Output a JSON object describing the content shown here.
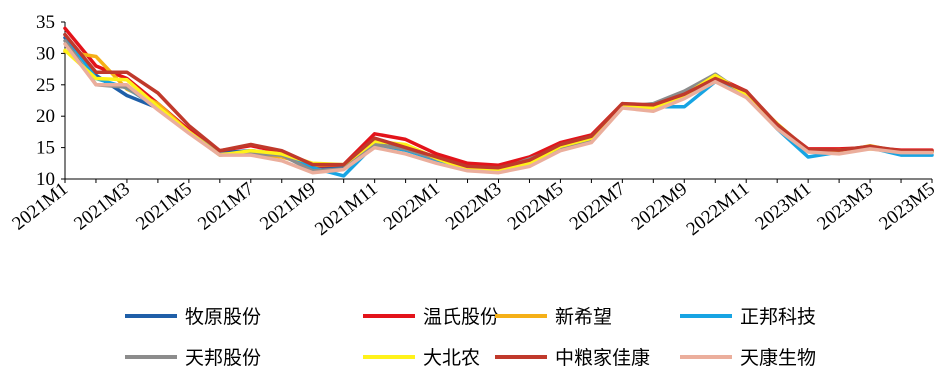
{
  "chart_data": {
    "type": "line",
    "title": "",
    "xlabel": "",
    "ylabel": "",
    "ylim": [
      10,
      35
    ],
    "yticks": [
      10,
      15,
      20,
      25,
      30,
      35
    ],
    "xtick_labels": [
      "2021M1",
      "2021M3",
      "2021M5",
      "2021M7",
      "2021M9",
      "2021M11",
      "2022M1",
      "2022M3",
      "2022M5",
      "2022M7",
      "2022M9",
      "2022M11",
      "2023M1",
      "2023M3",
      "2023M5"
    ],
    "categories": [
      "2021M1",
      "2021M2",
      "2021M3",
      "2021M4",
      "2021M5",
      "2021M6",
      "2021M7",
      "2021M8",
      "2021M9",
      "2021M10",
      "2021M11",
      "2021M12",
      "2022M1",
      "2022M2",
      "2022M3",
      "2022M4",
      "2022M5",
      "2022M6",
      "2022M7",
      "2022M8",
      "2022M9",
      "2022M10",
      "2022M11",
      "2022M12",
      "2023M1",
      "2023M2",
      "2023M3",
      "2023M4",
      "2023M5"
    ],
    "grid": false,
    "legend_position": "bottom",
    "series": [
      {
        "name": "牧原股份",
        "color": "#1F5FA8",
        "values": [
          32.5,
          26.5,
          23.3,
          21.3,
          17.5,
          14.2,
          14.5,
          14.0,
          12.0,
          11.8,
          15.7,
          14.7,
          13.4,
          11.8,
          11.3,
          12.6,
          15.0,
          16.5,
          21.8,
          21.5,
          23.2,
          26.0,
          23.5,
          18.3,
          14.5,
          14.5,
          15.2,
          14.4,
          14.4
        ]
      },
      {
        "name": "温氏股份",
        "color": "#E3131A",
        "values": [
          34.0,
          28.0,
          26.0,
          22.0,
          17.8,
          14.5,
          15.3,
          14.3,
          12.0,
          12.3,
          17.2,
          16.3,
          14.0,
          12.5,
          12.2,
          13.5,
          15.8,
          17.0,
          22.0,
          21.5,
          23.8,
          26.3,
          24.0,
          18.5,
          14.8,
          14.8,
          15.0,
          14.6,
          14.6
        ]
      },
      {
        "name": "新希望",
        "color": "#F5B017",
        "values": [
          30.3,
          29.5,
          24.3,
          22.0,
          17.5,
          14.0,
          14.0,
          13.5,
          12.2,
          12.3,
          15.5,
          14.6,
          13.2,
          11.5,
          11.3,
          12.3,
          15.0,
          16.3,
          21.5,
          21.0,
          23.5,
          26.0,
          23.5,
          18.3,
          14.5,
          14.3,
          15.3,
          14.3,
          14.3
        ]
      },
      {
        "name": "正邦科技",
        "color": "#17A4E3",
        "values": [
          33.0,
          26.0,
          24.5,
          21.3,
          17.5,
          13.8,
          14.3,
          13.8,
          11.8,
          10.5,
          15.5,
          14.6,
          13.0,
          11.5,
          11.5,
          12.5,
          14.8,
          16.0,
          21.8,
          21.5,
          21.5,
          25.5,
          23.3,
          18.0,
          13.5,
          14.3,
          15.0,
          13.8,
          13.8
        ]
      },
      {
        "name": "天邦股份",
        "color": "#8C8C8C",
        "values": [
          32.0,
          25.0,
          24.6,
          21.3,
          17.5,
          14.0,
          14.0,
          13.8,
          11.3,
          11.6,
          15.5,
          14.8,
          13.2,
          11.8,
          11.5,
          13.2,
          15.0,
          16.2,
          21.5,
          22.0,
          24.0,
          26.7,
          23.3,
          18.3,
          14.5,
          14.5,
          15.2,
          14.3,
          14.3
        ]
      },
      {
        "name": "大北农",
        "color": "#FFF21A",
        "values": [
          30.5,
          26.0,
          25.8,
          21.5,
          17.5,
          13.8,
          14.5,
          14.0,
          12.5,
          12.3,
          16.0,
          15.5,
          13.3,
          11.5,
          11.5,
          12.5,
          15.2,
          16.5,
          21.5,
          21.3,
          23.3,
          26.5,
          23.5,
          18.8,
          14.5,
          14.6,
          14.8,
          14.4,
          14.4
        ]
      },
      {
        "name": "中粮家佳康",
        "color": "#C0392B",
        "values": [
          33.0,
          27.0,
          27.0,
          23.7,
          18.5,
          14.5,
          15.5,
          14.5,
          12.3,
          12.3,
          16.5,
          15.0,
          13.5,
          12.0,
          11.8,
          13.0,
          15.5,
          16.8,
          22.0,
          21.8,
          23.5,
          26.0,
          24.0,
          18.7,
          14.7,
          14.6,
          15.2,
          14.5,
          14.5
        ]
      },
      {
        "name": "天康生物",
        "color": "#EBAE9C",
        "values": [
          31.5,
          25.0,
          25.0,
          21.0,
          17.3,
          13.8,
          13.8,
          12.9,
          11.0,
          11.5,
          15.0,
          14.0,
          12.5,
          11.3,
          11.0,
          12.0,
          14.5,
          15.8,
          21.3,
          20.8,
          22.8,
          25.5,
          23.0,
          18.0,
          14.3,
          14.0,
          14.8,
          14.2,
          14.2
        ]
      }
    ]
  }
}
